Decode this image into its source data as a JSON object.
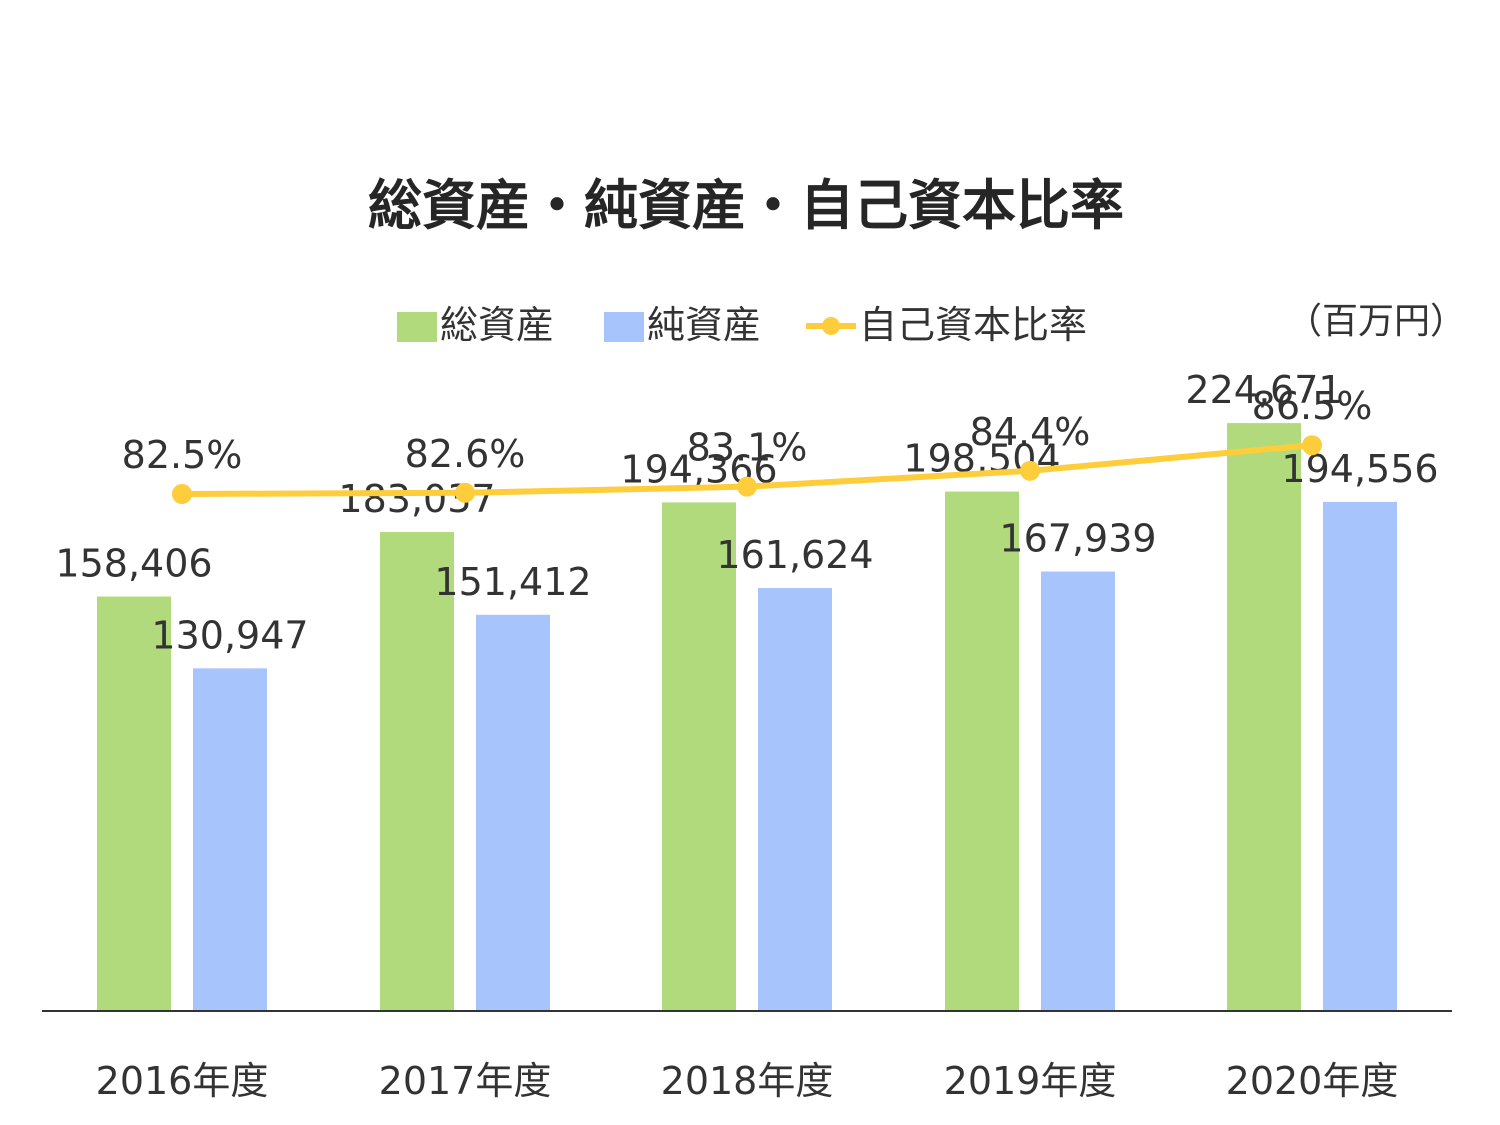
{
  "chart_data": {
    "type": "bar",
    "title": "総資産・純資産・自己資本比率",
    "unit": "（百万円）",
    "categories": [
      "2016年度",
      "2017年度",
      "2018年度",
      "2019年度",
      "2020年度"
    ],
    "series": [
      {
        "name": "総資産",
        "kind": "bar",
        "color": "#b0da7b",
        "values": [
          158406,
          183037,
          194366,
          198504,
          224671
        ],
        "labels": [
          "158,406",
          "183,037",
          "194,366",
          "198,504",
          "224,671"
        ]
      },
      {
        "name": "純資産",
        "kind": "bar",
        "color": "#a8c4fc",
        "values": [
          130947,
          151412,
          161624,
          167939,
          194556
        ],
        "labels": [
          "130,947",
          "151,412",
          "161,624",
          "167,939",
          "194,556"
        ]
      },
      {
        "name": "自己資本比率",
        "kind": "line",
        "color": "#fdcd3c",
        "values": [
          82.5,
          82.6,
          83.1,
          84.4,
          86.5
        ],
        "labels": [
          "82.5%",
          "82.6%",
          "83.1%",
          "84.4%",
          "86.5%"
        ]
      }
    ],
    "ylim": [
      0,
      287000
    ],
    "ylim_secondary": [
      0,
      100
    ],
    "legend_position": "top",
    "grid": false
  }
}
